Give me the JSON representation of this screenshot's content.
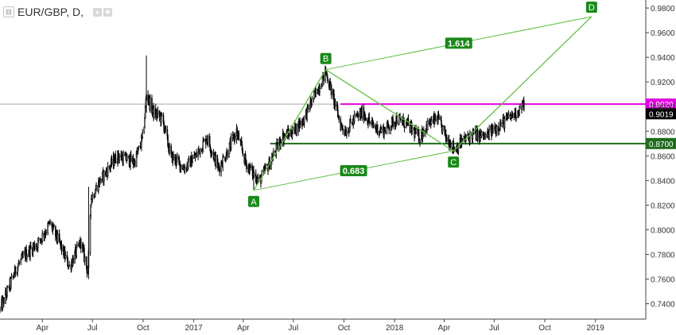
{
  "header": {
    "collapse_glyph": "⊟",
    "title": "EUR/GBP, D,",
    "icons": [
      "eye-icon",
      "settings-icon"
    ]
  },
  "colors": {
    "candle": "#000000",
    "pattern": "#5fbf3f",
    "label_bg": "#1a8a1a",
    "level_magenta": "#e000e0",
    "level_green": "#1f6b1f",
    "last_price_bg": "#000000",
    "grid_line": "#aaaaaa"
  },
  "chart_data": {
    "type": "candlestick",
    "title": "EUR/GBP, D,",
    "xlabel": "",
    "ylabel": "",
    "x_ticks": [
      {
        "label": "Apr",
        "date": "2016-04-01"
      },
      {
        "label": "Jul",
        "date": "2016-07-01"
      },
      {
        "label": "Oct",
        "date": "2016-10-01"
      },
      {
        "label": "2017",
        "date": "2017-01-01"
      },
      {
        "label": "Apr",
        "date": "2017-04-01"
      },
      {
        "label": "Jul",
        "date": "2017-07-01"
      },
      {
        "label": "Oct",
        "date": "2017-10-01"
      },
      {
        "label": "2018",
        "date": "2018-01-01"
      },
      {
        "label": "Apr",
        "date": "2018-04-01"
      },
      {
        "label": "Jul",
        "date": "2018-07-01"
      },
      {
        "label": "Oct",
        "date": "2018-10-01"
      },
      {
        "label": "2019",
        "date": "2019-01-01"
      }
    ],
    "xlim": [
      "2016-01-15",
      "2019-04-01"
    ],
    "ylim": [
      0.7275,
      0.9865
    ],
    "y_ticks": [
      0.74,
      0.76,
      0.78,
      0.8,
      0.82,
      0.84,
      0.86,
      0.88,
      0.9,
      0.92,
      0.94,
      0.96,
      0.98
    ],
    "y_tick_labels": [
      "0.7400",
      "0.7600",
      "0.7800",
      "0.8000",
      "0.8200",
      "0.8400",
      "0.8600",
      "0.8800",
      "0.9000",
      "0.9200",
      "0.9400",
      "0.9600",
      "0.9800"
    ],
    "price_path": [
      [
        "2016-01-15",
        0.735
      ],
      [
        "2016-02-15",
        0.77
      ],
      [
        "2016-03-01",
        0.78
      ],
      [
        "2016-03-25",
        0.79
      ],
      [
        "2016-04-15",
        0.805
      ],
      [
        "2016-05-01",
        0.79
      ],
      [
        "2016-05-20",
        0.77
      ],
      [
        "2016-06-10",
        0.79
      ],
      [
        "2016-06-23",
        0.765
      ],
      [
        "2016-06-28",
        0.825
      ],
      [
        "2016-07-15",
        0.84
      ],
      [
        "2016-08-15",
        0.86
      ],
      [
        "2016-09-15",
        0.855
      ],
      [
        "2016-10-01",
        0.875
      ],
      [
        "2016-10-07",
        0.91
      ],
      [
        "2016-10-20",
        0.895
      ],
      [
        "2016-11-05",
        0.89
      ],
      [
        "2016-11-20",
        0.86
      ],
      [
        "2016-12-15",
        0.85
      ],
      [
        "2017-01-05",
        0.86
      ],
      [
        "2017-01-25",
        0.875
      ],
      [
        "2017-02-15",
        0.85
      ],
      [
        "2017-03-05",
        0.865
      ],
      [
        "2017-03-20",
        0.88
      ],
      [
        "2017-04-05",
        0.855
      ],
      [
        "2017-04-20",
        0.845
      ],
      [
        "2017-05-01",
        0.84
      ],
      [
        "2017-05-20",
        0.855
      ],
      [
        "2017-06-10",
        0.875
      ],
      [
        "2017-07-01",
        0.88
      ],
      [
        "2017-07-20",
        0.89
      ],
      [
        "2017-08-10",
        0.91
      ],
      [
        "2017-08-29",
        0.928
      ],
      [
        "2017-09-10",
        0.91
      ],
      [
        "2017-09-25",
        0.885
      ],
      [
        "2017-10-05",
        0.88
      ],
      [
        "2017-10-20",
        0.89
      ],
      [
        "2017-11-05",
        0.895
      ],
      [
        "2017-11-20",
        0.885
      ],
      [
        "2017-12-10",
        0.88
      ],
      [
        "2018-01-05",
        0.89
      ],
      [
        "2018-01-25",
        0.885
      ],
      [
        "2018-02-15",
        0.875
      ],
      [
        "2018-03-01",
        0.885
      ],
      [
        "2018-03-20",
        0.89
      ],
      [
        "2018-04-05",
        0.875
      ],
      [
        "2018-04-20",
        0.866
      ],
      [
        "2018-05-05",
        0.872
      ],
      [
        "2018-05-25",
        0.878
      ],
      [
        "2018-06-15",
        0.875
      ],
      [
        "2018-07-01",
        0.882
      ],
      [
        "2018-07-20",
        0.888
      ],
      [
        "2018-08-10",
        0.895
      ],
      [
        "2018-08-25",
        0.902
      ]
    ],
    "spikes": [
      {
        "date": "2016-10-07",
        "high": 0.9415,
        "low": 0.895
      },
      {
        "date": "2017-04-20",
        "high": 0.852,
        "low": 0.832
      },
      {
        "date": "2018-04-18",
        "high": 0.871,
        "low": 0.862
      },
      {
        "date": "2016-06-24",
        "high": 0.835,
        "low": 0.76
      }
    ],
    "pattern": {
      "points": [
        {
          "label": "A",
          "date": "2017-04-20",
          "price": 0.832
        },
        {
          "label": "B",
          "date": "2017-08-29",
          "price": 0.93
        },
        {
          "label": "C",
          "date": "2018-04-18",
          "price": 0.864
        },
        {
          "label": "D",
          "date": "2018-12-25",
          "price": 0.973
        }
      ],
      "ratios": [
        {
          "from": "A",
          "to": "C",
          "text": "0.683"
        },
        {
          "from": "B",
          "to": "D",
          "text": "1.614"
        }
      ]
    },
    "levels": [
      {
        "price": 0.902,
        "label": "0.9020",
        "start_date": "2017-09-25",
        "color": "#e000e0"
      },
      {
        "price": 0.87,
        "label": "0.8700",
        "start_date": "2017-05-20",
        "color": "#1f6b1f"
      }
    ],
    "last_price": {
      "price": 0.9019,
      "label": "0.9019"
    },
    "crosshair_price": 0.902
  }
}
